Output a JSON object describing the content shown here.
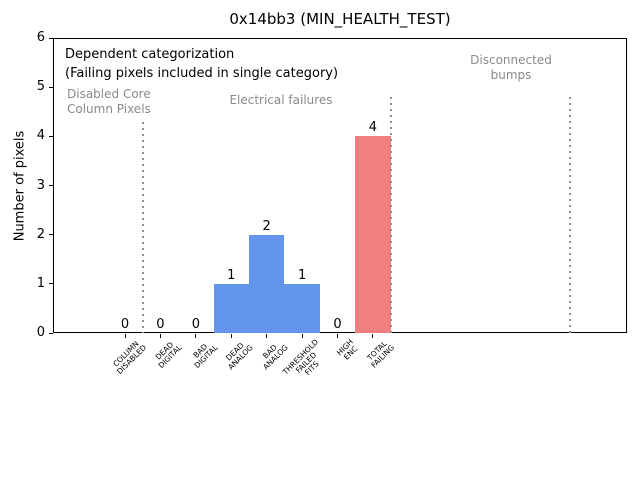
{
  "chart_data": {
    "type": "bar",
    "title": "0x14bb3 (MIN_HEALTH_TEST)",
    "xlabel": "",
    "ylabel": "Number of pixels",
    "ylim": [
      0,
      6
    ],
    "yticks": [
      0,
      1,
      2,
      3,
      4,
      5,
      6
    ],
    "grid": false,
    "legend": null,
    "categories": [
      "COLUMN DISABLED",
      "DEAD DIGITAL",
      "BAD DIGITAL",
      "DEAD ANALOG",
      "BAD ANALOG",
      "THRESHOLD FAILED FITS",
      "HIGH ENC",
      "TOTAL FAILING"
    ],
    "category_label_lines": [
      [
        "COLUMN",
        "DISABLED"
      ],
      [
        "DEAD",
        "DIGITAL"
      ],
      [
        "BAD",
        "DIGITAL"
      ],
      [
        "DEAD",
        "ANALOG"
      ],
      [
        "BAD",
        "ANALOG"
      ],
      [
        "THRESHOLD",
        "FAILED",
        "FITS"
      ],
      [
        "HIGH",
        "ENC"
      ],
      [
        "TOTAL",
        "FAILING"
      ]
    ],
    "values": [
      0,
      0,
      0,
      1,
      2,
      1,
      0,
      4
    ],
    "bar_value_labels": [
      "0",
      "0",
      "0",
      "1",
      "2",
      "1",
      "0",
      "4"
    ],
    "bar_colors": [
      "#6495ed",
      "#6495ed",
      "#6495ed",
      "#6495ed",
      "#6495ed",
      "#6495ed",
      "#6495ed",
      "#f08080"
    ],
    "annotation": {
      "line1": "Dependent categorization",
      "line2": "(Failing pixels included in single category)"
    },
    "regions": [
      {
        "name": "disabled-core-column-pixels",
        "lines": [
          "Disabled Core",
          "Column Pixels"
        ],
        "align": "left",
        "x": 67,
        "y": 87
      },
      {
        "name": "electrical-failures",
        "lines": [
          "Electrical failures"
        ],
        "align": "center",
        "x": 281,
        "y": 93
      },
      {
        "name": "disconnected-bumps",
        "lines": [
          "Disconnected",
          "bumps"
        ],
        "align": "center",
        "x": 511,
        "y": 53
      }
    ],
    "separators": [
      {
        "at_category": 0.5,
        "top_value": 4.3
      },
      {
        "at_category": 7.5,
        "top_value": 4.8
      },
      {
        "at_category": 12.57,
        "top_value": 4.8
      }
    ],
    "colors": {
      "bar_blue": "#6495ed",
      "bar_red": "#f08080",
      "annotation_gray": "#8a8a8a",
      "separator_gray": "#8f8f8f",
      "axis_black": "#000000",
      "background": "#ffffff"
    }
  }
}
